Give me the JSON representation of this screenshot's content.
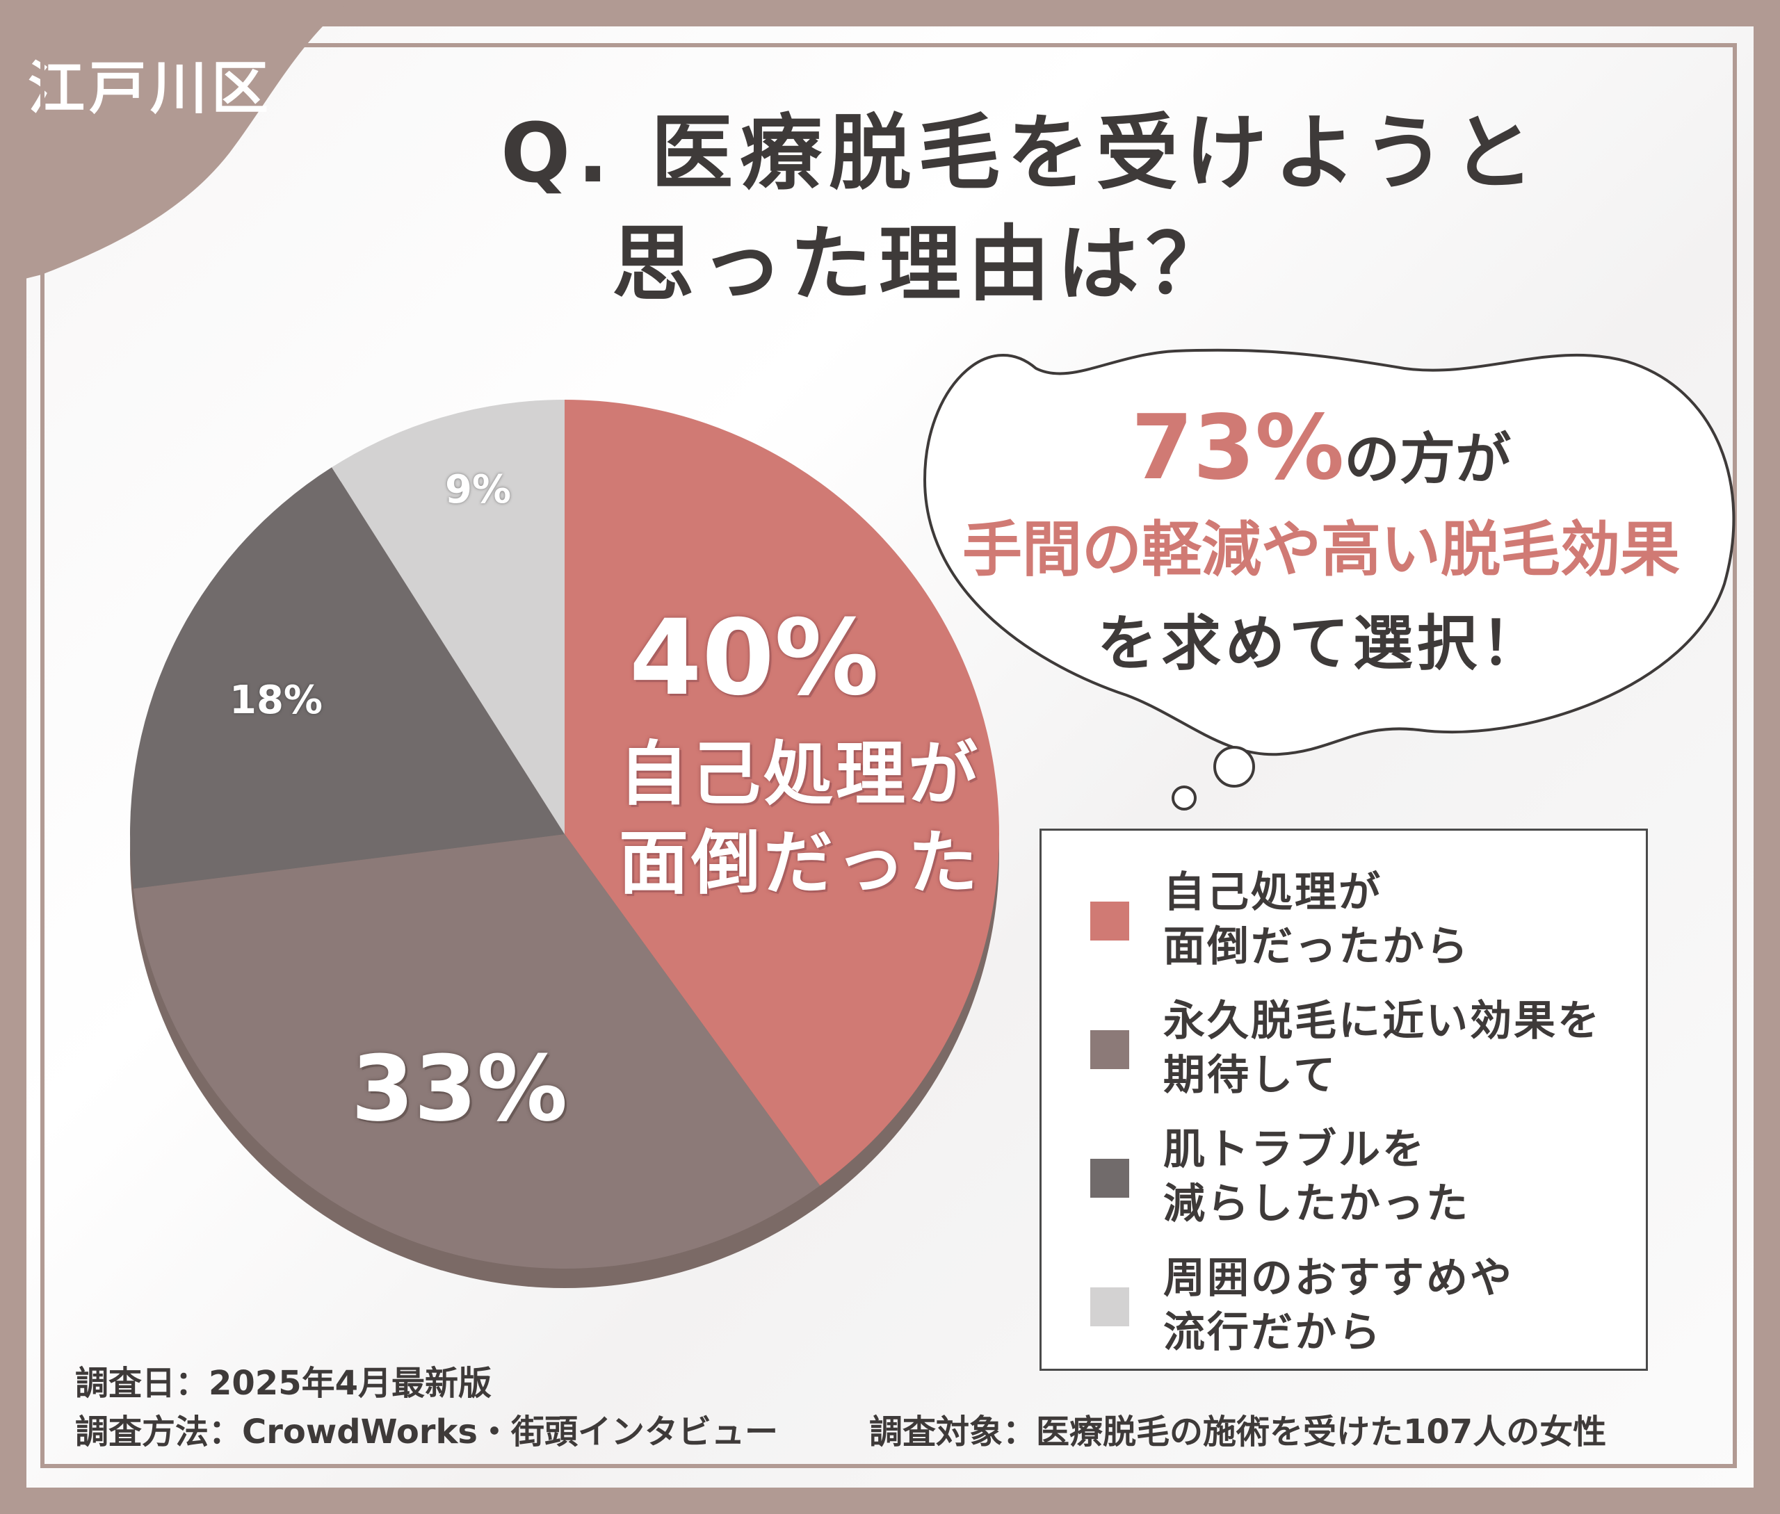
{
  "region_tag": "江戸川区",
  "title": {
    "line1": "Q. 医療脱毛を受けようと",
    "line2": "思った理由は？"
  },
  "callout": {
    "percent": "73%",
    "line1_rest": "の方が",
    "line2": "手間の軽減や高い脱毛効果",
    "line3": "を求めて選択！"
  },
  "slice_labels": {
    "s1_pct": "40%",
    "s1_desc_line1": "自己処理が",
    "s1_desc_line2": "面倒だった",
    "s2_pct": "33%",
    "s3_pct": "18%",
    "s4_pct": "9%"
  },
  "legend": [
    {
      "line1": "自己処理が",
      "line2": "面倒だったから",
      "color": "#d07a74"
    },
    {
      "line1": "永久脱毛に近い効果を",
      "line2": "期待して",
      "color": "#8c7a78"
    },
    {
      "line1": "肌トラブルを",
      "line2": "減らしたかった",
      "color": "#716b6b"
    },
    {
      "line1": "周囲のおすすめや",
      "line2": "流行だから",
      "color": "#d3d2d2"
    }
  ],
  "footer": {
    "date": "調査日：2025年4月最新版",
    "method": "調査方法：CrowdWorks・街頭インタビュー",
    "target": "調査対象：医療脱毛の施術を受けた107人の女性"
  },
  "chart_data": {
    "type": "pie",
    "categories": [
      "自己処理が面倒だったから",
      "永久脱毛に近い効果を期待して",
      "肌トラブルを減らしたかった",
      "周囲のおすすめや流行だから"
    ],
    "values": [
      40,
      33,
      18,
      9
    ],
    "colors": [
      "#d07a74",
      "#8c7a78",
      "#716b6b",
      "#d3d2d2"
    ],
    "title": "Q. 医療脱毛を受けようと思った理由は？",
    "legend_position": "right"
  }
}
